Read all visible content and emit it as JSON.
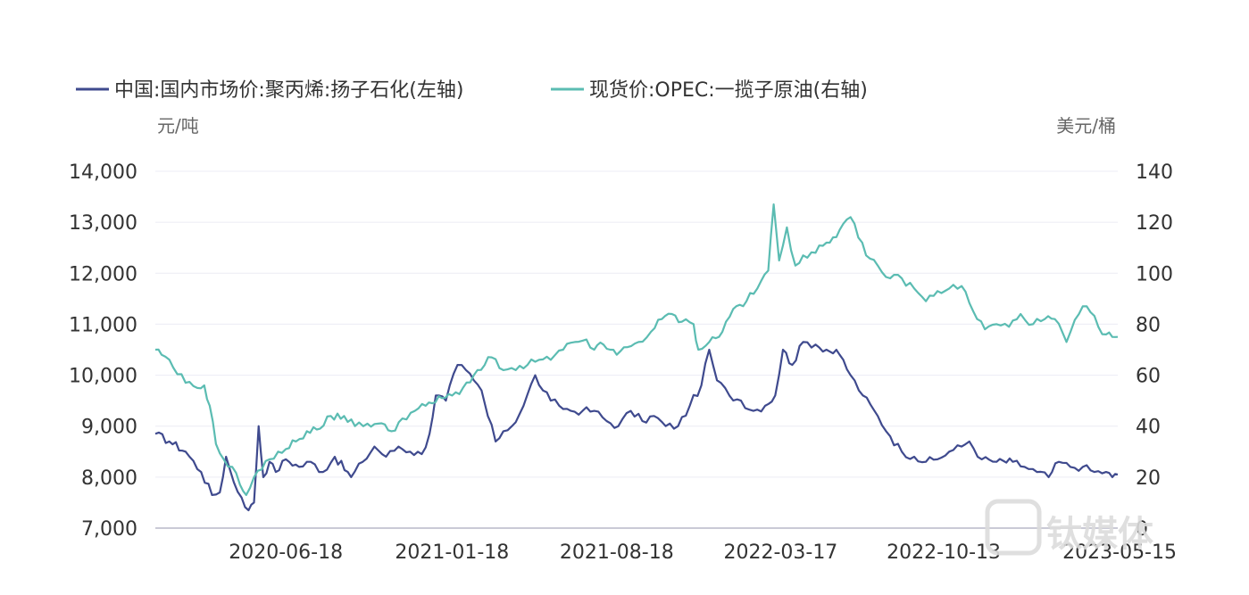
{
  "chart_data": {
    "type": "line",
    "title": "",
    "legend": [
      {
        "name": "中国:国内市场价:聚丙烯:扬子石化(左轴)",
        "color": "#3f4a8e"
      },
      {
        "name": "现货价:OPEC:一揽子原油(右轴)",
        "color": "#5bbcb2"
      }
    ],
    "legend_placement": "top-left",
    "y_left": {
      "unit": "元/吨",
      "ylim": [
        7000,
        14000
      ],
      "ticks": [
        "7,000",
        "8,000",
        "9,000",
        "10,000",
        "11,000",
        "12,000",
        "13,000",
        "14,000"
      ]
    },
    "y_right": {
      "unit": "美元/桶",
      "ylim": [
        0,
        140
      ],
      "ticks": [
        "0",
        "20",
        "40",
        "60",
        "80",
        "100",
        "120",
        "140"
      ]
    },
    "x_range": [
      "2020-01-02",
      "2023-05-25"
    ],
    "x_ticks": [
      "2020-06-18",
      "2021-01-18",
      "2021-08-18",
      "2022-03-17",
      "2022-10-13",
      "2023-05-15"
    ],
    "grid": true,
    "series": [
      {
        "name": "中国:国内市场价:聚丙烯:扬子石化(左轴)",
        "axis": "left",
        "points": [
          [
            "2020-01-02",
            8850
          ],
          [
            "2020-01-20",
            8700
          ],
          [
            "2020-02-10",
            8500
          ],
          [
            "2020-03-01",
            8100
          ],
          [
            "2020-03-15",
            7650
          ],
          [
            "2020-03-25",
            7700
          ],
          [
            "2020-04-02",
            8400
          ],
          [
            "2020-04-12",
            7900
          ],
          [
            "2020-04-22",
            7600
          ],
          [
            "2020-05-01",
            7350
          ],
          [
            "2020-05-08",
            7500
          ],
          [
            "2020-05-14",
            9000
          ],
          [
            "2020-05-20",
            8000
          ],
          [
            "2020-05-28",
            8300
          ],
          [
            "2020-06-05",
            8100
          ],
          [
            "2020-06-18",
            8350
          ],
          [
            "2020-07-05",
            8200
          ],
          [
            "2020-07-20",
            8300
          ],
          [
            "2020-08-05",
            8100
          ],
          [
            "2020-08-20",
            8400
          ],
          [
            "2020-09-10",
            8000
          ],
          [
            "2020-09-25",
            8300
          ],
          [
            "2020-10-10",
            8600
          ],
          [
            "2020-10-25",
            8400
          ],
          [
            "2020-11-10",
            8600
          ],
          [
            "2020-11-25",
            8500
          ],
          [
            "2020-12-10",
            8450
          ],
          [
            "2020-12-20",
            8850
          ],
          [
            "2020-12-28",
            9600
          ],
          [
            "2021-01-10",
            9500
          ],
          [
            "2021-01-25",
            10200
          ],
          [
            "2021-02-05",
            10100
          ],
          [
            "2021-02-15",
            9900
          ],
          [
            "2021-02-25",
            9700
          ],
          [
            "2021-03-05",
            9200
          ],
          [
            "2021-03-15",
            8700
          ],
          [
            "2021-03-25",
            8900
          ],
          [
            "2021-04-05",
            9000
          ],
          [
            "2021-04-20",
            9400
          ],
          [
            "2021-05-05",
            10000
          ],
          [
            "2021-05-15",
            9700
          ],
          [
            "2021-05-25",
            9500
          ],
          [
            "2021-06-05",
            9400
          ],
          [
            "2021-06-20",
            9300
          ],
          [
            "2021-07-05",
            9300
          ],
          [
            "2021-07-20",
            9300
          ],
          [
            "2021-08-05",
            9100
          ],
          [
            "2021-08-20",
            9000
          ],
          [
            "2021-09-05",
            9300
          ],
          [
            "2021-09-20",
            9100
          ],
          [
            "2021-10-05",
            9200
          ],
          [
            "2021-10-20",
            9000
          ],
          [
            "2021-11-05",
            9000
          ],
          [
            "2021-11-20",
            9400
          ],
          [
            "2021-12-05",
            9800
          ],
          [
            "2021-12-15",
            10500
          ],
          [
            "2021-12-25",
            9900
          ],
          [
            "2022-01-10",
            9600
          ],
          [
            "2022-01-25",
            9500
          ],
          [
            "2022-02-10",
            9300
          ],
          [
            "2022-02-25",
            9400
          ],
          [
            "2022-03-10",
            9600
          ],
          [
            "2022-03-20",
            10500
          ],
          [
            "2022-04-01",
            10200
          ],
          [
            "2022-04-15",
            10650
          ],
          [
            "2022-05-01",
            10600
          ],
          [
            "2022-05-15",
            10500
          ],
          [
            "2022-06-01",
            10400
          ],
          [
            "2022-06-15",
            10000
          ],
          [
            "2022-07-01",
            9600
          ],
          [
            "2022-07-20",
            9200
          ],
          [
            "2022-08-05",
            8800
          ],
          [
            "2022-08-20",
            8500
          ],
          [
            "2022-09-05",
            8400
          ],
          [
            "2022-09-20",
            8300
          ],
          [
            "2022-10-05",
            8350
          ],
          [
            "2022-10-20",
            8500
          ],
          [
            "2022-11-05",
            8600
          ],
          [
            "2022-11-15",
            8700
          ],
          [
            "2022-12-01",
            8350
          ],
          [
            "2022-12-20",
            8300
          ],
          [
            "2023-01-10",
            8300
          ],
          [
            "2023-01-25",
            8200
          ],
          [
            "2023-02-10",
            8100
          ],
          [
            "2023-02-25",
            8000
          ],
          [
            "2023-03-10",
            8300
          ],
          [
            "2023-03-25",
            8200
          ],
          [
            "2023-04-10",
            8200
          ],
          [
            "2023-04-25",
            8100
          ],
          [
            "2023-05-10",
            8100
          ],
          [
            "2023-05-18",
            8000
          ],
          [
            "2023-05-25",
            8050
          ]
        ]
      },
      {
        "name": "现货价:OPEC:一揽子原油(右轴)",
        "axis": "right",
        "points": [
          [
            "2020-01-02",
            70
          ],
          [
            "2020-01-10",
            68
          ],
          [
            "2020-01-25",
            63
          ],
          [
            "2020-02-10",
            57
          ],
          [
            "2020-02-25",
            55
          ],
          [
            "2020-03-05",
            56
          ],
          [
            "2020-03-12",
            48
          ],
          [
            "2020-03-20",
            33
          ],
          [
            "2020-03-30",
            27
          ],
          [
            "2020-04-10",
            24
          ],
          [
            "2020-04-20",
            17
          ],
          [
            "2020-04-28",
            13
          ],
          [
            "2020-05-08",
            20
          ],
          [
            "2020-05-18",
            23
          ],
          [
            "2020-05-28",
            27
          ],
          [
            "2020-06-08",
            30
          ],
          [
            "2020-06-18",
            31
          ],
          [
            "2020-07-01",
            34
          ],
          [
            "2020-07-15",
            38
          ],
          [
            "2020-08-01",
            39
          ],
          [
            "2020-08-15",
            44
          ],
          [
            "2020-09-01",
            44
          ],
          [
            "2020-09-15",
            40
          ],
          [
            "2020-10-01",
            41
          ],
          [
            "2020-10-15",
            41
          ],
          [
            "2020-11-01",
            38
          ],
          [
            "2020-11-15",
            43
          ],
          [
            "2020-12-01",
            46
          ],
          [
            "2020-12-15",
            48
          ],
          [
            "2021-01-05",
            51
          ],
          [
            "2021-01-18",
            52
          ],
          [
            "2021-02-01",
            55
          ],
          [
            "2021-02-15",
            60
          ],
          [
            "2021-03-01",
            64
          ],
          [
            "2021-03-10",
            67
          ],
          [
            "2021-03-25",
            62
          ],
          [
            "2021-04-10",
            62
          ],
          [
            "2021-04-25",
            64
          ],
          [
            "2021-05-10",
            66
          ],
          [
            "2021-05-25",
            66
          ],
          [
            "2021-06-10",
            70
          ],
          [
            "2021-06-25",
            73
          ],
          [
            "2021-07-10",
            74
          ],
          [
            "2021-07-20",
            70
          ],
          [
            "2021-08-01",
            72
          ],
          [
            "2021-08-18",
            68
          ],
          [
            "2021-09-01",
            71
          ],
          [
            "2021-09-15",
            73
          ],
          [
            "2021-10-01",
            77
          ],
          [
            "2021-10-15",
            82
          ],
          [
            "2021-10-28",
            84
          ],
          [
            "2021-11-10",
            81
          ],
          [
            "2021-11-25",
            80
          ],
          [
            "2021-12-01",
            70
          ],
          [
            "2021-12-15",
            73
          ],
          [
            "2022-01-01",
            77
          ],
          [
            "2022-01-15",
            86
          ],
          [
            "2022-02-01",
            89
          ],
          [
            "2022-02-15",
            94
          ],
          [
            "2022-03-01",
            101
          ],
          [
            "2022-03-08",
            127
          ],
          [
            "2022-03-15",
            105
          ],
          [
            "2022-03-25",
            118
          ],
          [
            "2022-04-05",
            103
          ],
          [
            "2022-04-15",
            107
          ],
          [
            "2022-05-01",
            108
          ],
          [
            "2022-05-15",
            112
          ],
          [
            "2022-06-01",
            117
          ],
          [
            "2022-06-15",
            122
          ],
          [
            "2022-06-25",
            114
          ],
          [
            "2022-07-05",
            107
          ],
          [
            "2022-07-20",
            103
          ],
          [
            "2022-08-05",
            98
          ],
          [
            "2022-08-20",
            98
          ],
          [
            "2022-09-05",
            94
          ],
          [
            "2022-09-20",
            89
          ],
          [
            "2022-10-05",
            93
          ],
          [
            "2022-10-20",
            94
          ],
          [
            "2022-11-05",
            95
          ],
          [
            "2022-11-20",
            85
          ],
          [
            "2022-12-05",
            78
          ],
          [
            "2022-12-20",
            80
          ],
          [
            "2023-01-05",
            79
          ],
          [
            "2023-01-20",
            84
          ],
          [
            "2023-02-05",
            80
          ],
          [
            "2023-02-20",
            82
          ],
          [
            "2023-03-05",
            82
          ],
          [
            "2023-03-20",
            73
          ],
          [
            "2023-04-05",
            84
          ],
          [
            "2023-04-15",
            87
          ],
          [
            "2023-04-30",
            79
          ],
          [
            "2023-05-10",
            76
          ],
          [
            "2023-05-18",
            75
          ],
          [
            "2023-05-25",
            75
          ]
        ]
      }
    ]
  },
  "watermark": {
    "text": "钛媒体"
  }
}
